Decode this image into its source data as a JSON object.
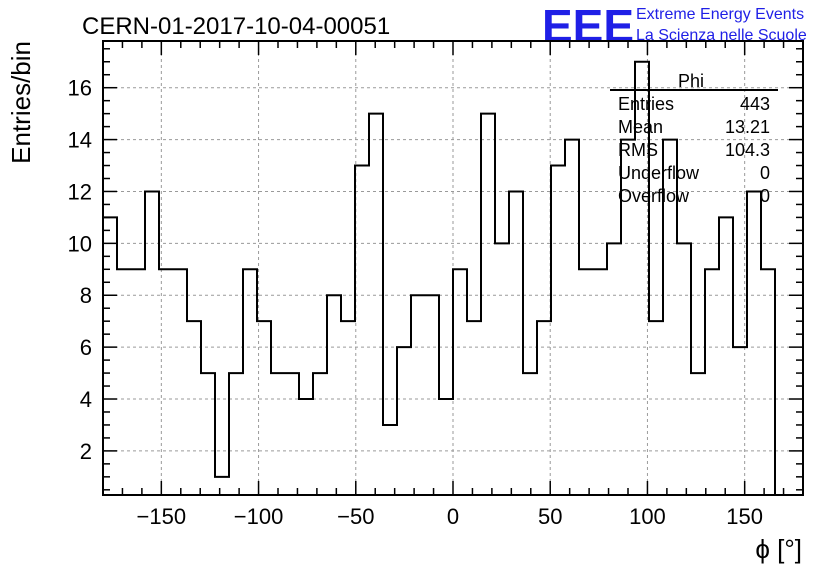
{
  "header": {
    "run_title": "CERN-01-2017-10-04-00051",
    "logo_letters": "EEE",
    "logo_line1": "Extreme Energy Events",
    "logo_line2": "La Scienza nelle Scuole",
    "brand_color": "#1f1fe6"
  },
  "stats_box": {
    "title": "Phi",
    "rows": [
      {
        "label": "Entries",
        "value": "443"
      },
      {
        "label": "Mean",
        "value": "13.21"
      },
      {
        "label": "RMS",
        "value": "104.3"
      },
      {
        "label": "Underflow",
        "value": "0"
      },
      {
        "label": "Overflow",
        "value": "0"
      }
    ]
  },
  "chart_data": {
    "type": "bar",
    "style": "step-histogram",
    "xlabel": "ϕ [°]",
    "ylabel": "Entries/bin",
    "xlim": [
      -180,
      180
    ],
    "ylim": [
      0.3,
      17.8
    ],
    "bin_width": 7.2,
    "bin_edges_start": -180,
    "values": [
      11,
      9,
      9,
      12,
      9,
      9,
      7,
      5,
      1,
      5,
      9,
      7,
      5,
      5,
      4,
      5,
      8,
      7,
      13,
      15,
      3,
      6,
      8,
      8,
      4,
      9,
      7,
      15,
      10,
      12,
      5,
      7,
      13,
      14,
      9,
      9,
      10,
      14,
      17,
      7,
      14,
      10,
      5,
      9,
      11,
      6,
      12,
      9
    ],
    "xticks": [
      -150,
      -100,
      -50,
      0,
      50,
      100,
      150
    ],
    "xtick_labels": [
      "−150",
      "−100",
      "−50",
      "0",
      "50",
      "100",
      "150"
    ],
    "yticks": [
      2,
      4,
      6,
      8,
      10,
      12,
      14,
      16
    ],
    "ytick_labels": [
      "2",
      "4",
      "6",
      "8",
      "10",
      "12",
      "14",
      "16"
    ],
    "grid": true,
    "line_color": "#000000"
  }
}
